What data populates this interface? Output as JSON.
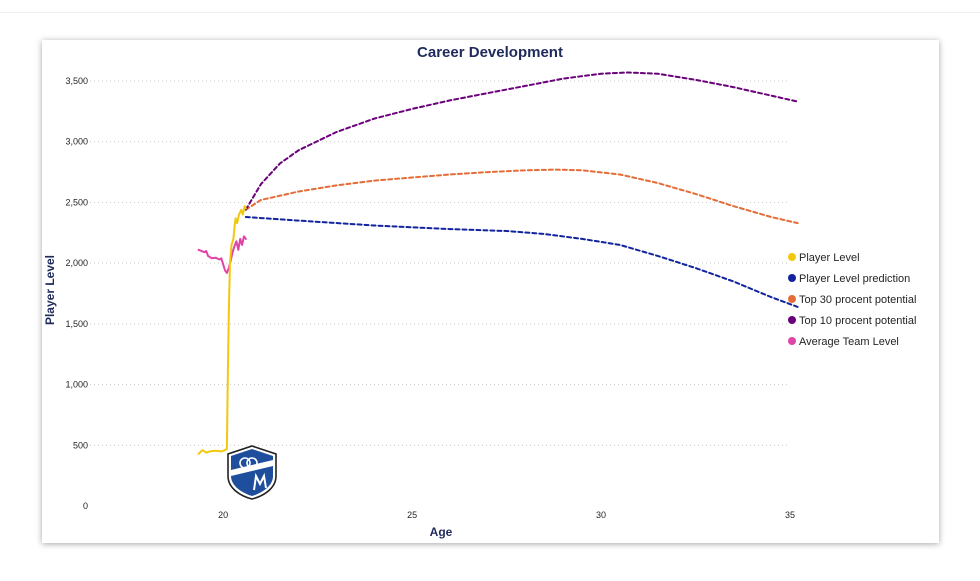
{
  "chart_data": {
    "type": "line",
    "title": "Career Development",
    "xlabel": "Age",
    "ylabel": "Player Level",
    "xlim": [
      16,
      35
    ],
    "ylim": [
      0,
      3500
    ],
    "x_ticks": [
      20,
      25,
      30,
      35
    ],
    "x_tick_labels": [
      "20",
      "25",
      "30",
      "35"
    ],
    "y_ticks": [
      0,
      500,
      1000,
      1500,
      2000,
      2500,
      3000,
      3500
    ],
    "y_tick_labels": [
      "0",
      "500",
      "1,000",
      "1,500",
      "2,000",
      "2,500",
      "3,000",
      "3,500"
    ],
    "grid": true,
    "legend_position": "right",
    "series": [
      {
        "name": "Player Level",
        "color": "#f2c80f",
        "style": "solid",
        "points": [
          [
            19.35,
            430
          ],
          [
            19.45,
            460
          ],
          [
            19.55,
            440
          ],
          [
            19.65,
            450
          ],
          [
            19.8,
            455
          ],
          [
            19.95,
            450
          ],
          [
            20.05,
            460
          ],
          [
            20.1,
            470
          ],
          [
            20.12,
            1000
          ],
          [
            20.15,
            1600
          ],
          [
            20.18,
            2000
          ],
          [
            20.22,
            2150
          ],
          [
            20.27,
            2200
          ],
          [
            20.3,
            2300
          ],
          [
            20.33,
            2370
          ],
          [
            20.37,
            2330
          ],
          [
            20.42,
            2400
          ],
          [
            20.48,
            2440
          ],
          [
            20.52,
            2400
          ],
          [
            20.57,
            2470
          ],
          [
            20.6,
            2450
          ]
        ]
      },
      {
        "name": "Player Level prediction",
        "color": "#12239e",
        "style": "dashed",
        "points": [
          [
            20.6,
            2380
          ],
          [
            22,
            2350
          ],
          [
            24,
            2310
          ],
          [
            26,
            2280
          ],
          [
            27.5,
            2265
          ],
          [
            28.5,
            2240
          ],
          [
            29.5,
            2200
          ],
          [
            30.5,
            2150
          ],
          [
            31.5,
            2060
          ],
          [
            32.5,
            1960
          ],
          [
            33.5,
            1850
          ],
          [
            34.5,
            1720
          ],
          [
            35.2,
            1640
          ]
        ]
      },
      {
        "name": "Top 30 procent potential",
        "color": "#e66c37",
        "style": "dashed",
        "points": [
          [
            20.6,
            2440
          ],
          [
            21,
            2520
          ],
          [
            22,
            2590
          ],
          [
            23,
            2640
          ],
          [
            24,
            2680
          ],
          [
            25,
            2705
          ],
          [
            26,
            2730
          ],
          [
            27,
            2750
          ],
          [
            28,
            2765
          ],
          [
            28.8,
            2770
          ],
          [
            29.5,
            2765
          ],
          [
            30.5,
            2730
          ],
          [
            31.5,
            2660
          ],
          [
            32.5,
            2570
          ],
          [
            33.5,
            2470
          ],
          [
            34.5,
            2380
          ],
          [
            35.2,
            2330
          ]
        ]
      },
      {
        "name": "Top 10 procent potential",
        "color": "#6b007b",
        "style": "dashed",
        "points": [
          [
            20.6,
            2440
          ],
          [
            21,
            2650
          ],
          [
            21.5,
            2820
          ],
          [
            22,
            2930
          ],
          [
            23,
            3080
          ],
          [
            24,
            3190
          ],
          [
            25,
            3270
          ],
          [
            26,
            3340
          ],
          [
            27,
            3400
          ],
          [
            28,
            3460
          ],
          [
            29,
            3520
          ],
          [
            30,
            3560
          ],
          [
            30.7,
            3570
          ],
          [
            31.5,
            3560
          ],
          [
            32.5,
            3510
          ],
          [
            33.5,
            3450
          ],
          [
            34.5,
            3380
          ],
          [
            35.2,
            3330
          ]
        ]
      },
      {
        "name": "Average Team Level",
        "color": "#e044a7",
        "style": "solid",
        "points": [
          [
            19.35,
            2110
          ],
          [
            19.5,
            2090
          ],
          [
            19.55,
            2100
          ],
          [
            19.6,
            2060
          ],
          [
            19.7,
            2040
          ],
          [
            19.8,
            2045
          ],
          [
            19.9,
            2030
          ],
          [
            19.95,
            2040
          ],
          [
            20.0,
            1990
          ],
          [
            20.05,
            1940
          ],
          [
            20.1,
            1920
          ],
          [
            20.15,
            1960
          ],
          [
            20.2,
            2020
          ],
          [
            20.25,
            2090
          ],
          [
            20.3,
            2140
          ],
          [
            20.35,
            2180
          ],
          [
            20.4,
            2110
          ],
          [
            20.45,
            2200
          ],
          [
            20.5,
            2150
          ],
          [
            20.55,
            2220
          ],
          [
            20.6,
            2200
          ]
        ]
      }
    ]
  },
  "icons": {
    "logo": "club-crest-shield-icon"
  }
}
